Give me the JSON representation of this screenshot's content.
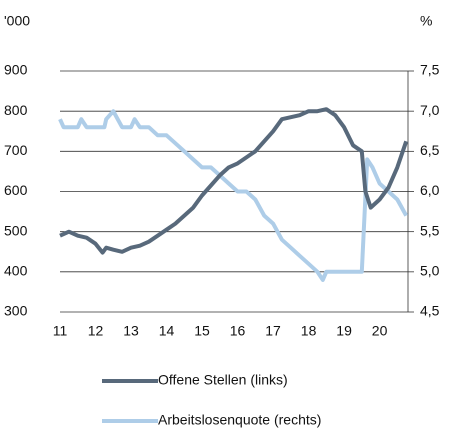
{
  "chart_data": {
    "type": "line",
    "y_unit": "'000",
    "y2_unit": "%",
    "xlim": [
      11,
      20.8
    ],
    "xticks": [
      11,
      12,
      13,
      14,
      15,
      16,
      17,
      18,
      19,
      20
    ],
    "ylim": [
      300,
      900
    ],
    "yticks": [
      300,
      400,
      500,
      600,
      700,
      800,
      900
    ],
    "y2lim": [
      4.5,
      7.5
    ],
    "y2ticks": [
      {
        "value": 4.5,
        "label": "4,5"
      },
      {
        "value": 5.0,
        "label": "5,0"
      },
      {
        "value": 5.5,
        "label": "5,5"
      },
      {
        "value": 6.0,
        "label": "6,0"
      },
      {
        "value": 6.5,
        "label": "6,5"
      },
      {
        "value": 7.0,
        "label": "7,0"
      },
      {
        "value": 7.5,
        "label": "7,5"
      }
    ],
    "grid": true,
    "series": [
      {
        "name": "Offene Stellen (links)",
        "color": "#58697b",
        "axis": "y",
        "x": [
          11.0,
          11.25,
          11.5,
          11.75,
          12.0,
          12.2,
          12.3,
          12.5,
          12.75,
          13.0,
          13.25,
          13.5,
          13.75,
          14.0,
          14.25,
          14.5,
          14.75,
          15.0,
          15.25,
          15.5,
          15.75,
          16.0,
          16.25,
          16.5,
          16.75,
          17.0,
          17.25,
          17.5,
          17.75,
          18.0,
          18.25,
          18.5,
          18.75,
          19.0,
          19.25,
          19.5,
          19.6,
          19.75,
          20.0,
          20.25,
          20.5,
          20.75
        ],
        "values": [
          490,
          500,
          490,
          485,
          470,
          448,
          460,
          455,
          450,
          460,
          465,
          475,
          490,
          505,
          520,
          540,
          560,
          590,
          615,
          640,
          660,
          670,
          685,
          700,
          725,
          750,
          780,
          785,
          790,
          800,
          800,
          805,
          790,
          760,
          715,
          700,
          600,
          560,
          580,
          610,
          660,
          725
        ]
      },
      {
        "name": "Arbeitslosenquote (rechts)",
        "color": "#aecde8",
        "axis": "y2",
        "x": [
          11.0,
          11.1,
          11.5,
          11.6,
          11.75,
          12.25,
          12.3,
          12.5,
          12.75,
          13.0,
          13.1,
          13.25,
          13.5,
          13.75,
          14.0,
          14.25,
          14.5,
          14.75,
          15.0,
          15.25,
          15.5,
          15.75,
          16.0,
          16.25,
          16.5,
          16.75,
          17.0,
          17.25,
          17.5,
          17.75,
          18.0,
          18.25,
          18.4,
          18.5,
          19.0,
          19.5,
          19.65,
          19.8,
          20.0,
          20.25,
          20.5,
          20.75
        ],
        "values": [
          6.9,
          6.8,
          6.8,
          6.9,
          6.8,
          6.8,
          6.9,
          7.0,
          6.8,
          6.8,
          6.9,
          6.8,
          6.8,
          6.7,
          6.7,
          6.6,
          6.5,
          6.4,
          6.3,
          6.3,
          6.2,
          6.1,
          6.0,
          6.0,
          5.9,
          5.7,
          5.6,
          5.4,
          5.3,
          5.2,
          5.1,
          5.0,
          4.9,
          5.0,
          5.0,
          5.0,
          6.4,
          6.3,
          6.1,
          6.0,
          5.9,
          5.7
        ]
      }
    ]
  }
}
